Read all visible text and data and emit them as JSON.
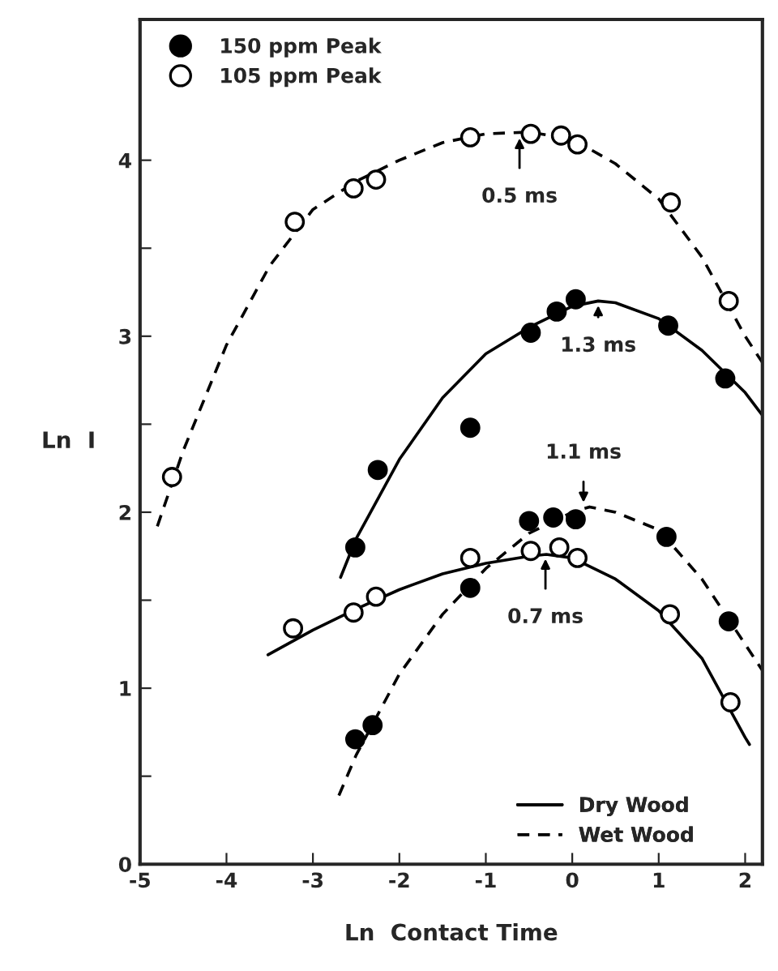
{
  "chart_data": {
    "type": "scatter",
    "xlabel": "Ln  Contact Time",
    "ylabel": "Ln  I",
    "xlim": [
      -5,
      2.2
    ],
    "ylim": [
      0,
      4.8
    ],
    "xticks": [
      -5,
      -4,
      -3,
      -2,
      -1,
      0,
      1,
      2
    ],
    "yticks": [
      0,
      {
        "value": 0.5,
        "label": null
      },
      1,
      {
        "value": 1.5,
        "label": null
      },
      2,
      {
        "value": 2.5,
        "label": null
      },
      3,
      {
        "value": 3.5,
        "label": null
      },
      4
    ],
    "grid": false,
    "legend": "top left",
    "series": [
      {
        "name": "150 ppm Peak",
        "color": "#000000",
        "marker": "circle",
        "x": [
          -2.51,
          -2.25,
          -1.18,
          -0.48,
          -0.18,
          0.04,
          1.11,
          1.77,
          -2.51,
          -2.31,
          -1.18,
          -0.5,
          -0.22,
          0.04,
          1.09,
          1.81
        ],
        "values": [
          1.8,
          2.24,
          2.48,
          3.02,
          3.14,
          3.21,
          3.06,
          2.76,
          0.71,
          0.79,
          1.57,
          1.95,
          1.97,
          1.96,
          1.86,
          1.38
        ]
      },
      {
        "name": "105 ppm Peak",
        "color": "#ffffff",
        "marker": "circle",
        "x": [
          -4.63,
          -3.21,
          -2.53,
          -2.27,
          -1.18,
          -0.48,
          -0.13,
          0.06,
          1.14,
          1.81,
          -3.23,
          -2.53,
          -2.27,
          -1.18,
          -0.48,
          -0.15,
          0.06,
          1.13,
          1.83
        ],
        "values": [
          2.2,
          3.65,
          3.84,
          3.89,
          4.13,
          4.15,
          4.14,
          4.09,
          3.76,
          3.2,
          1.34,
          1.43,
          1.52,
          1.74,
          1.78,
          1.8,
          1.74,
          1.42,
          0.92
        ]
      },
      {
        "type": "line",
        "name": "Dry Wood",
        "color": "#000000",
        "line_style": "solid",
        "x": [
          -2.68,
          -2.5,
          -2,
          -1.5,
          -1,
          -0.5,
          0,
          0.3,
          0.5,
          1,
          1.5,
          2,
          2.2
        ],
        "values": [
          1.63,
          1.85,
          2.3,
          2.65,
          2.9,
          3.05,
          3.17,
          3.2,
          3.19,
          3.1,
          2.92,
          2.68,
          2.55
        ]
      },
      {
        "type": "line",
        "color": "#000000",
        "line_style": "solid",
        "x": [
          -3.52,
          -3,
          -2.5,
          -2,
          -1.5,
          -1,
          -0.5,
          -0.3,
          0,
          0.5,
          1,
          1.5,
          2,
          2.05
        ],
        "values": [
          1.19,
          1.33,
          1.45,
          1.56,
          1.65,
          1.71,
          1.75,
          1.76,
          1.74,
          1.62,
          1.44,
          1.17,
          0.72,
          0.68
        ]
      },
      {
        "type": "line",
        "name": "Wet Wood",
        "color": "#000000",
        "line_style": "dashed",
        "x": [
          -2.7,
          -2.5,
          -2,
          -1.5,
          -1,
          -0.5,
          0,
          0.2,
          0.5,
          1,
          1.5,
          2,
          2.2
        ],
        "values": [
          0.39,
          0.62,
          1.08,
          1.42,
          1.68,
          1.88,
          2.0,
          2.03,
          2.0,
          1.9,
          1.62,
          1.25,
          1.1
        ]
      },
      {
        "type": "line",
        "color": "#000000",
        "line_style": "dashed",
        "x": [
          -4.8,
          -4.5,
          -4,
          -3.5,
          -3,
          -2.5,
          -2,
          -1.5,
          -1,
          -0.5,
          0,
          0.5,
          1,
          1.5,
          2,
          2.2
        ],
        "values": [
          1.92,
          2.35,
          2.95,
          3.4,
          3.72,
          3.88,
          4.0,
          4.1,
          4.15,
          4.16,
          4.12,
          3.98,
          3.78,
          3.45,
          3.0,
          2.85
        ]
      }
    ],
    "annotations": [
      {
        "text": "0.5 ms",
        "x": -0.61,
        "y": 4.15
      },
      {
        "text": "1.3 ms",
        "x": 0.3,
        "y": 3.2
      },
      {
        "text": "1.1 ms",
        "x": 0.13,
        "y": 2.03
      },
      {
        "text": "0.7 ms",
        "x": -0.31,
        "y": 1.76
      }
    ]
  }
}
